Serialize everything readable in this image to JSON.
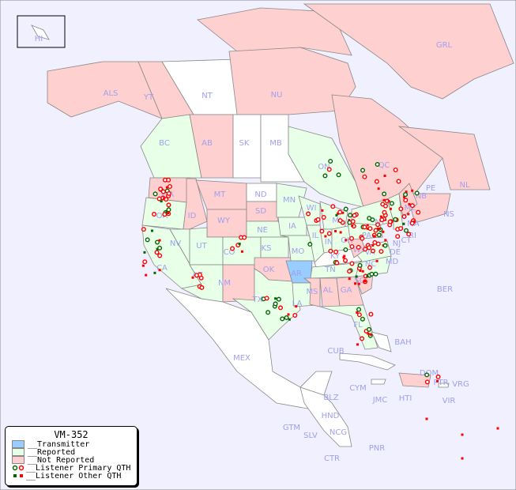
{
  "map_title": "VM-352",
  "colors": {
    "ocean": "#f0f0ff",
    "transmitter": "#99ccff",
    "reported": "#e8ffe8",
    "not_reported": "#ffd0d0",
    "none": "#ffffff",
    "primary_red": "#ff0000",
    "primary_green": "#006600"
  },
  "legend": {
    "title": "VM-352",
    "items": [
      {
        "label": "__Transmitter",
        "kind": "swatch",
        "color": "#99ccff"
      },
      {
        "label": "__Reported",
        "kind": "swatch",
        "color": "#e8ffe8"
      },
      {
        "label": "__Not Reported",
        "kind": "swatch",
        "color": "#ffd0d0"
      },
      {
        "label": "__Listener Primary QTH",
        "kind": "circle"
      },
      {
        "label": "__Listener Other QTH",
        "kind": "square"
      }
    ]
  },
  "labels": {
    "HI": "HI",
    "ALS": "ALS",
    "YT": "YT",
    "NT": "NT",
    "NU": "NU",
    "GRL": "GRL",
    "BC": "BC",
    "AB": "AB",
    "SK": "SK",
    "MB": "MB",
    "ON": "ON",
    "QC": "QC",
    "NL": "NL",
    "NB": "NB",
    "PE": "PE",
    "NS": "NS",
    "WA": "WA",
    "OR": "OR",
    "CA": "CA",
    "NV": "NV",
    "ID": "ID",
    "MT": "MT",
    "WY": "WY",
    "UT": "UT",
    "CO": "CO",
    "AZ": "AZ",
    "NM": "NM",
    "ND": "ND",
    "SD": "SD",
    "NE": "NE",
    "KS": "KS",
    "OK": "OK",
    "TX": "TX",
    "MN": "MN",
    "IA": "IA",
    "MO": "MO",
    "AR": "AR",
    "LA": "LA",
    "WI": "WI",
    "IL": "IL",
    "MI": "MI",
    "IN": "IN",
    "OH": "OH",
    "KY": "KY",
    "TN": "TN",
    "MS": "MS",
    "AL": "AL",
    "GA": "GA",
    "FL": "FL",
    "SC": "SC",
    "NC": "NC",
    "VA": "VA",
    "WV": "WV",
    "PA": "PA",
    "NY": "NY",
    "ME": "ME",
    "MA": "MA",
    "CT": "CT",
    "RI": "RI",
    "NJ": "NJ",
    "DE": "DE",
    "MD": "MD",
    "BER": "BER",
    "BAH": "BAH",
    "CUB": "CUB",
    "MEX": "MEX",
    "DOM": "DOM",
    "PTR": "PTR",
    "VRG": "VRG",
    "VIR": "VIR",
    "HTI": "HTI",
    "JMC": "JMC",
    "CYM": "CYM",
    "BLZ": "BLZ",
    "HND": "HND",
    "GTM": "GTM",
    "SLV": "SLV",
    "NCG": "NCG",
    "CTR": "CTR",
    "PNR": "PNR"
  },
  "status": {
    "transmitter": [
      "AR"
    ],
    "reported": [
      "BC",
      "ON",
      "OR",
      "CA",
      "NV",
      "UT",
      "CO",
      "AZ",
      "NE",
      "KS",
      "TX",
      "MN",
      "IA",
      "MO",
      "LA",
      "WI",
      "IL",
      "MI",
      "IN",
      "OH",
      "TN",
      "FL",
      "NC",
      "VA",
      "PA",
      "NY",
      "NE_ENG"
    ],
    "not_reported": [
      "ALS",
      "YT",
      "NU",
      "ARC",
      "GRL",
      "AB",
      "QC",
      "NL",
      "MAR",
      "WA",
      "ID",
      "MT",
      "WY",
      "NM",
      "SD",
      "OK",
      "MS",
      "AL",
      "GA",
      "SC",
      "WV",
      "ME",
      "HTI_DOM"
    ]
  }
}
